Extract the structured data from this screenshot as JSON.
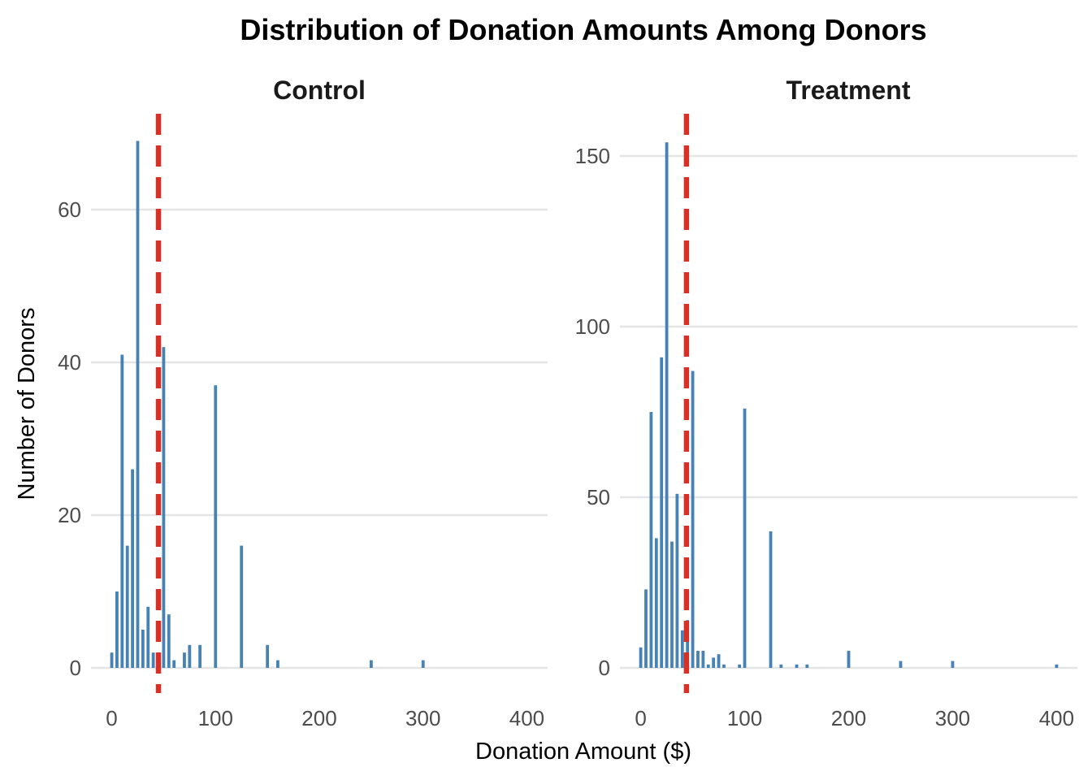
{
  "chart_data": {
    "title": "Distribution of Donation Amounts Among Donors",
    "xlabel": "Donation Amount ($)",
    "ylabel": "Number of Donors",
    "type": "bar",
    "colors": {
      "bar": "#4682b4",
      "mean_line": "#d73027",
      "grid": "#e5e5e5"
    },
    "grid": true,
    "legend": "none",
    "xlim": [
      -20,
      420
    ],
    "x_ticks": [
      0,
      100,
      200,
      300,
      400
    ],
    "panels": [
      {
        "name": "Control",
        "ylim": [
          0,
          70
        ],
        "y_ticks": [
          0,
          20,
          40,
          60
        ],
        "mean_line_x": 45,
        "x": [
          0,
          5,
          10,
          15,
          20,
          25,
          30,
          35,
          40,
          45,
          50,
          55,
          60,
          70,
          75,
          85,
          100,
          125,
          150,
          160,
          250,
          300
        ],
        "values": [
          2,
          10,
          41,
          16,
          26,
          69,
          5,
          8,
          2,
          2,
          42,
          7,
          1,
          2,
          3,
          3,
          37,
          16,
          3,
          1,
          1,
          1
        ]
      },
      {
        "name": "Treatment",
        "ylim": [
          0,
          160
        ],
        "y_ticks": [
          0,
          50,
          100,
          150
        ],
        "mean_line_x": 44,
        "x": [
          0,
          5,
          10,
          15,
          20,
          25,
          30,
          35,
          40,
          45,
          50,
          55,
          60,
          65,
          70,
          75,
          80,
          95,
          100,
          125,
          135,
          150,
          160,
          200,
          250,
          300,
          400
        ],
        "values": [
          6,
          23,
          75,
          38,
          91,
          154,
          37,
          51,
          11,
          14,
          87,
          5,
          5,
          1,
          3,
          4,
          1,
          1,
          76,
          40,
          1,
          1,
          1,
          5,
          2,
          2,
          1
        ]
      }
    ]
  }
}
